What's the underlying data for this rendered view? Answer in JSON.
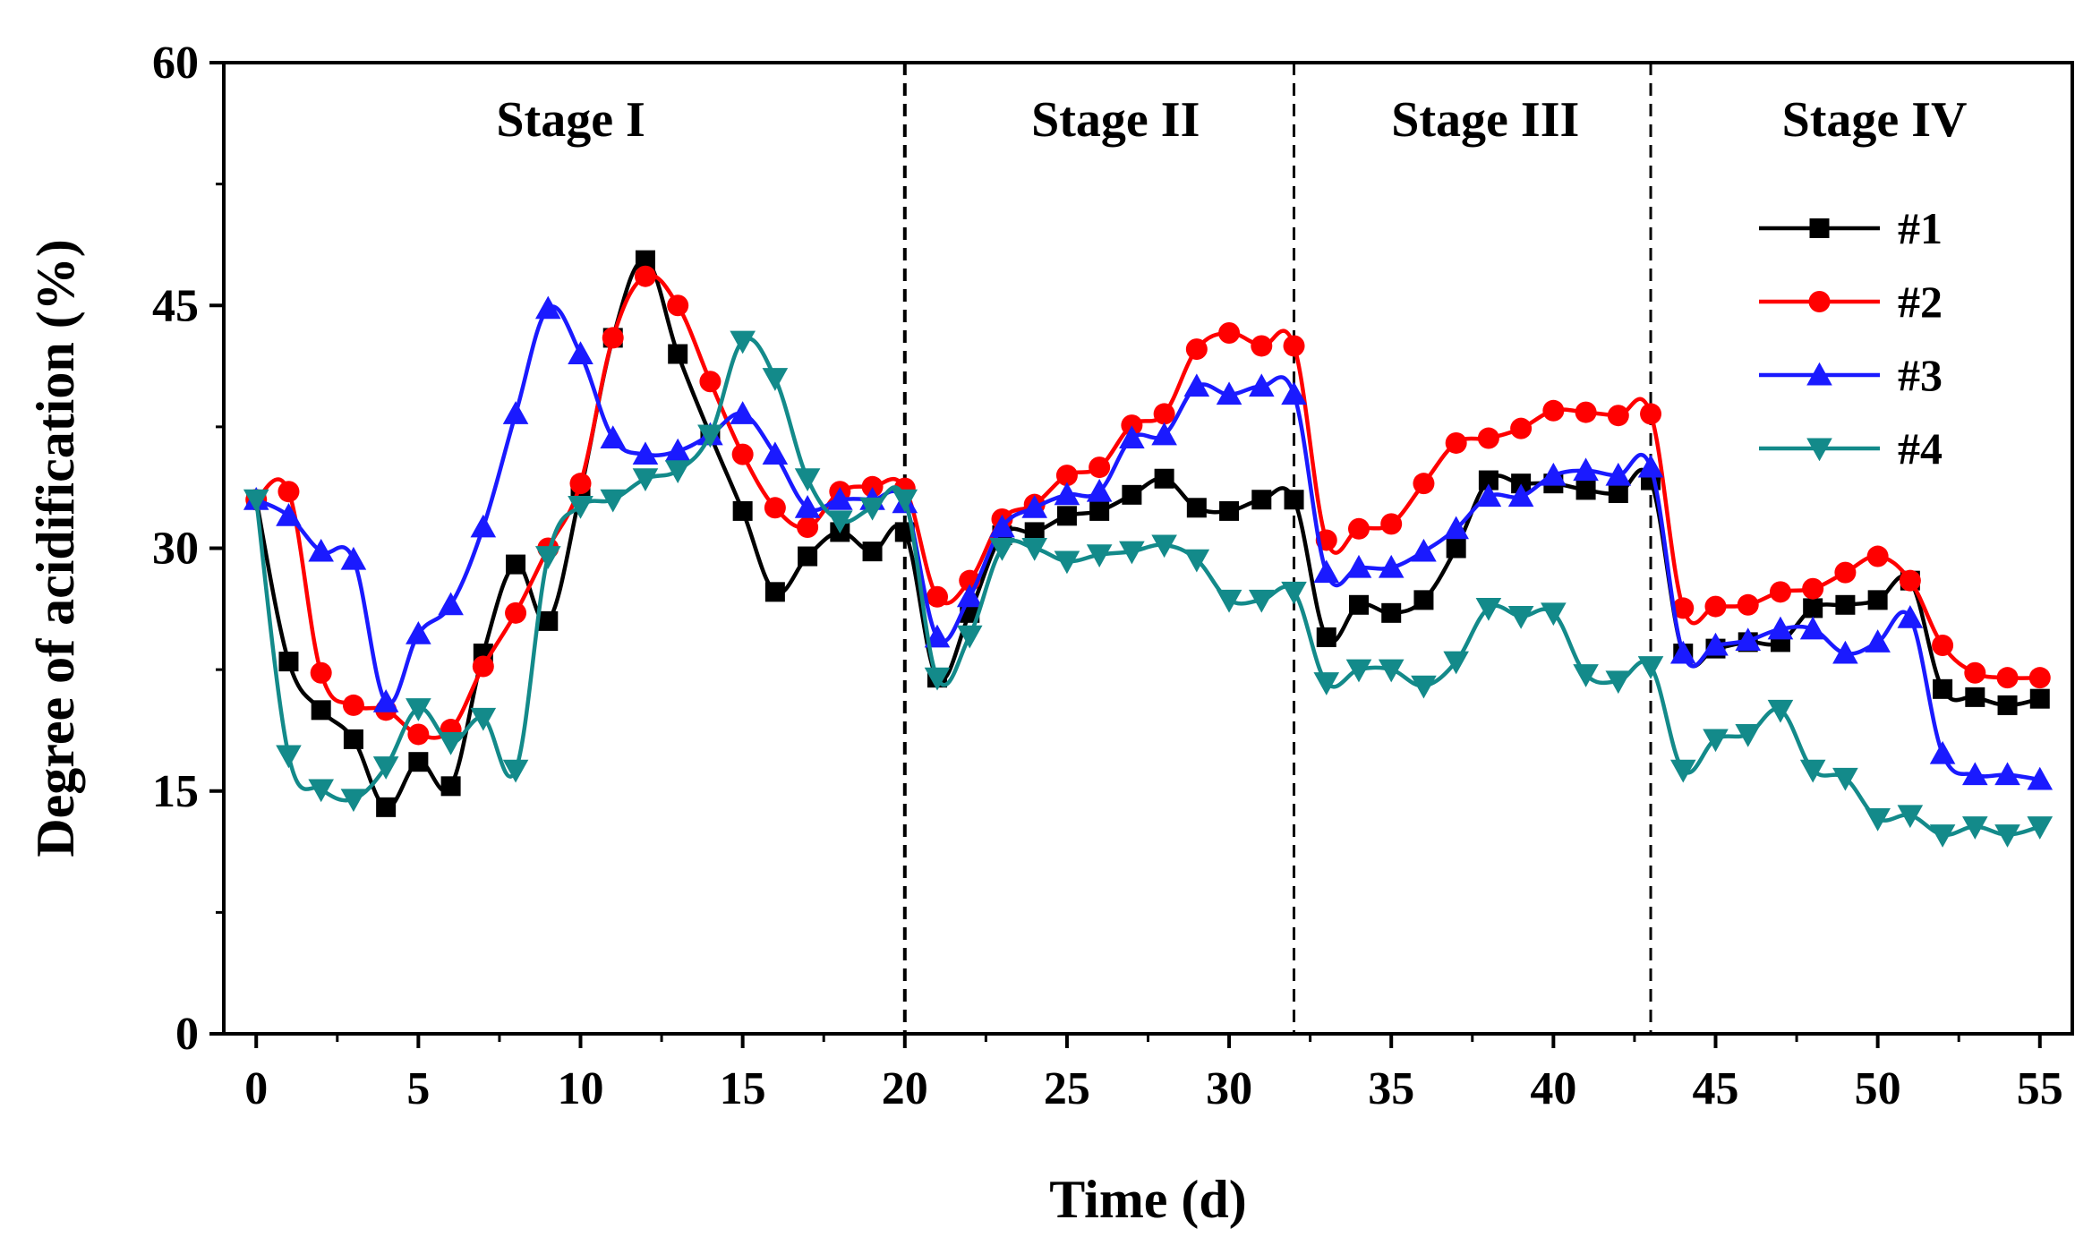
{
  "chart_data": {
    "type": "line",
    "title": "",
    "xlabel": "Time (d)",
    "ylabel": "Degree of acidification (%)",
    "xlim": [
      -1,
      56
    ],
    "ylim": [
      0,
      60
    ],
    "xticks": [
      0,
      5,
      10,
      15,
      20,
      25,
      30,
      35,
      40,
      45,
      50,
      55
    ],
    "yticks": [
      0,
      15,
      30,
      45,
      60
    ],
    "grid": false,
    "legend_position": "top-right",
    "stage_boundaries": [
      20,
      32,
      43
    ],
    "stages": [
      {
        "label": "Stage I",
        "center": 9.7
      },
      {
        "label": "Stage II",
        "center": 26.5
      },
      {
        "label": "Stage III",
        "center": 37.9
      },
      {
        "label": "Stage IV",
        "center": 49.9
      }
    ],
    "series": [
      {
        "name": "#1",
        "color": "#000000",
        "marker": "square",
        "x": [
          0,
          1,
          2,
          3,
          4,
          5,
          6,
          7,
          8,
          9,
          10,
          11,
          12,
          13,
          14,
          15,
          16,
          17,
          18,
          19,
          20,
          21,
          22,
          23,
          24,
          25,
          26,
          27,
          28,
          29,
          30,
          31,
          32,
          33,
          34,
          35,
          36,
          37,
          38,
          39,
          40,
          41,
          42,
          43,
          44,
          45,
          46,
          47,
          48,
          49,
          50,
          51,
          52,
          53,
          54,
          55
        ],
        "y": [
          33,
          23,
          20,
          18.2,
          14,
          16.8,
          15.3,
          23.5,
          29,
          25.5,
          33.5,
          43,
          47.8,
          42,
          37,
          32.3,
          27.3,
          29.5,
          31,
          29.8,
          31,
          22,
          26,
          30.8,
          31,
          32,
          32.3,
          33.3,
          34.3,
          32.5,
          32.3,
          33,
          33,
          24.5,
          26.5,
          26,
          26.8,
          30,
          34.2,
          34,
          34,
          33.6,
          33.4,
          34.2,
          23.5,
          23.8,
          24.2,
          24.2,
          26.3,
          26.5,
          26.8,
          28,
          21.3,
          20.8,
          20.3,
          20.7
        ]
      },
      {
        "name": "#2",
        "color": "#ff0000",
        "marker": "circle",
        "x": [
          0,
          1,
          2,
          3,
          4,
          5,
          6,
          7,
          8,
          9,
          10,
          11,
          12,
          13,
          14,
          15,
          16,
          17,
          18,
          19,
          20,
          21,
          22,
          23,
          24,
          25,
          26,
          27,
          28,
          29,
          30,
          31,
          32,
          33,
          34,
          35,
          36,
          37,
          38,
          39,
          40,
          41,
          42,
          43,
          44,
          45,
          46,
          47,
          48,
          49,
          50,
          51,
          52,
          53,
          54,
          55
        ],
        "y": [
          33,
          33.5,
          22.3,
          20.3,
          20,
          18.5,
          18.8,
          22.7,
          26,
          30,
          34,
          43,
          46.8,
          45,
          40.3,
          35.8,
          32.5,
          31.3,
          33.5,
          33.8,
          33.7,
          27,
          28,
          31.8,
          32.7,
          34.5,
          35,
          37.6,
          38.3,
          42.3,
          43.3,
          42.5,
          42.5,
          30.5,
          31.2,
          31.5,
          34,
          36.5,
          36.8,
          37.4,
          38.5,
          38.4,
          38.2,
          38.3,
          26.3,
          26.4,
          26.5,
          27.3,
          27.5,
          28.5,
          29.5,
          28,
          24,
          22.3,
          22,
          22
        ]
      },
      {
        "name": "#3",
        "color": "#1a1aff",
        "marker": "triangle-up",
        "x": [
          0,
          1,
          2,
          3,
          4,
          5,
          6,
          7,
          8,
          9,
          10,
          11,
          12,
          13,
          14,
          15,
          16,
          17,
          18,
          19,
          20,
          21,
          22,
          23,
          24,
          25,
          26,
          27,
          28,
          29,
          30,
          31,
          32,
          33,
          34,
          35,
          36,
          37,
          38,
          39,
          40,
          41,
          42,
          43,
          44,
          45,
          46,
          47,
          48,
          49,
          50,
          51,
          52,
          53,
          54,
          55
        ],
        "y": [
          33,
          32,
          29.8,
          29.3,
          20.5,
          24.7,
          26.5,
          31.3,
          38.3,
          44.8,
          42,
          36.8,
          35.8,
          36,
          37,
          38.3,
          35.8,
          32.5,
          33,
          33,
          32.8,
          24.5,
          27,
          31.3,
          32.5,
          33.3,
          33.5,
          36.8,
          37,
          40,
          39.5,
          40,
          39.5,
          28.5,
          28.8,
          28.8,
          29.8,
          31.2,
          33.2,
          33.2,
          34.5,
          34.8,
          34.5,
          35,
          23.5,
          24,
          24.3,
          25,
          25,
          23.5,
          24.2,
          25.7,
          17.3,
          16,
          16,
          15.7
        ]
      },
      {
        "name": "#4",
        "color": "#138a8a",
        "marker": "triangle-down",
        "x": [
          0,
          1,
          2,
          3,
          4,
          5,
          6,
          7,
          8,
          9,
          10,
          11,
          12,
          13,
          14,
          15,
          16,
          17,
          18,
          19,
          20,
          21,
          22,
          23,
          24,
          25,
          26,
          27,
          28,
          29,
          30,
          31,
          32,
          33,
          34,
          35,
          36,
          37,
          38,
          39,
          40,
          41,
          42,
          43,
          44,
          45,
          46,
          47,
          48,
          49,
          50,
          51,
          52,
          53,
          54,
          55
        ],
        "y": [
          33,
          17.2,
          15.1,
          14.5,
          16.5,
          20.1,
          18,
          19.5,
          16.3,
          29.5,
          32.6,
          33,
          34.3,
          34.8,
          37,
          42.8,
          40.5,
          34.3,
          31.7,
          32.5,
          33,
          22,
          24.6,
          30,
          30,
          29.2,
          29.6,
          29.8,
          30.2,
          29.3,
          26.8,
          26.8,
          27.3,
          21.7,
          22.5,
          22.5,
          21.5,
          23,
          26.3,
          25.8,
          26,
          22.2,
          21.8,
          22.7,
          16.3,
          18.2,
          18.5,
          20,
          16.3,
          15.8,
          13.3,
          13.5,
          12.3,
          12.8,
          12.3,
          12.8
        ]
      }
    ]
  }
}
